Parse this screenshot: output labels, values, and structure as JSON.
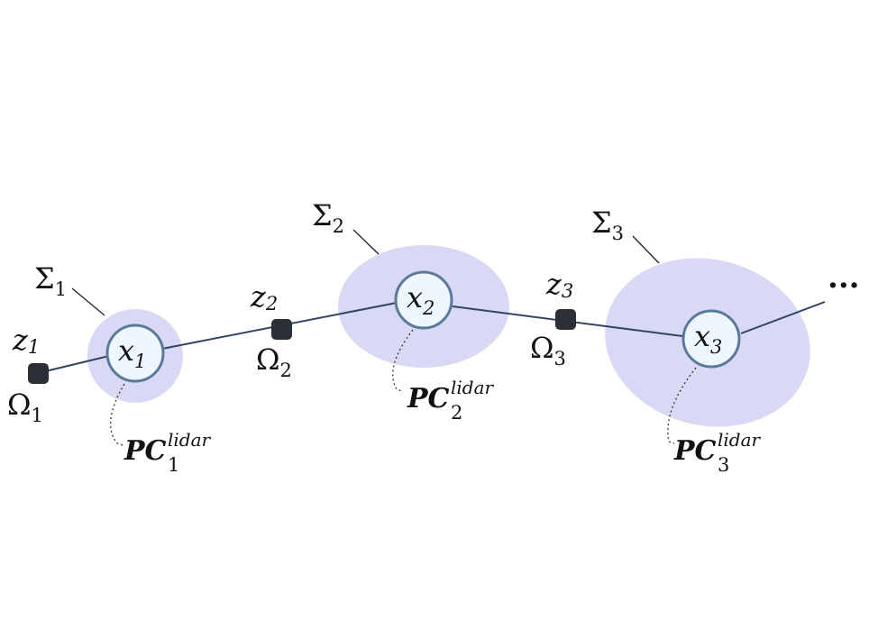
{
  "colors": {
    "covariance_fill": "#d9d9f5",
    "node_fill": "#eef6ff",
    "node_stroke": "#5b7a9a",
    "edge": "#2f4560",
    "factor": "#2b3037",
    "text": "#111111"
  },
  "nodes": [
    {
      "id": "x1",
      "symbol": "x",
      "index": "1"
    },
    {
      "id": "x2",
      "symbol": "x",
      "index": "2"
    },
    {
      "id": "x3",
      "symbol": "x",
      "index": "3"
    }
  ],
  "covariances": [
    {
      "symbol": "Σ",
      "index": "1"
    },
    {
      "symbol": "Σ",
      "index": "2"
    },
    {
      "symbol": "Σ",
      "index": "3"
    }
  ],
  "measurements": [
    {
      "symbol": "z",
      "index": "1"
    },
    {
      "symbol": "z",
      "index": "2"
    },
    {
      "symbol": "z",
      "index": "3"
    }
  ],
  "information": [
    {
      "symbol": "Ω",
      "index": "1"
    },
    {
      "symbol": "Ω",
      "index": "2"
    },
    {
      "symbol": "Ω",
      "index": "3"
    }
  ],
  "point_clouds": [
    {
      "symbol": "PC",
      "index": "1",
      "superscript": "lidar"
    },
    {
      "symbol": "PC",
      "index": "2",
      "superscript": "lidar"
    },
    {
      "symbol": "PC",
      "index": "3",
      "superscript": "lidar"
    }
  ],
  "continuation": "···"
}
